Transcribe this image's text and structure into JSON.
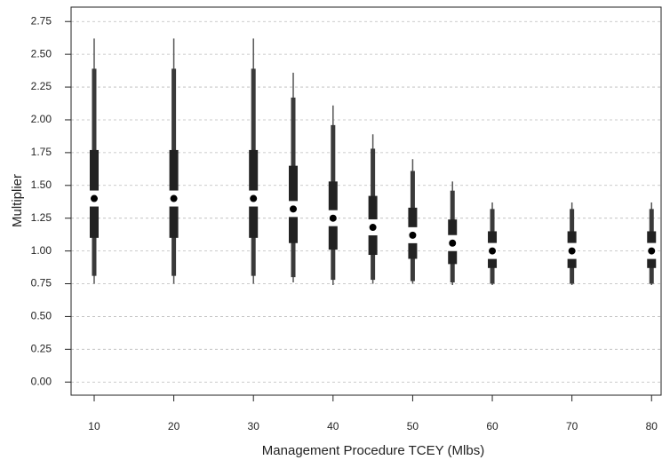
{
  "chart_data": {
    "type": "box",
    "xlabel": "Management Procedure TCEY (Mlbs)",
    "ylabel": "Multiplier",
    "x": [
      10,
      20,
      30,
      35,
      40,
      45,
      50,
      55,
      60,
      70,
      80
    ],
    "min": [
      0.75,
      0.75,
      0.75,
      0.76,
      0.74,
      0.75,
      0.75,
      0.74,
      0.74,
      0.74,
      0.74
    ],
    "p5": [
      0.81,
      0.81,
      0.81,
      0.8,
      0.78,
      0.78,
      0.77,
      0.76,
      0.75,
      0.75,
      0.75
    ],
    "p25": [
      1.1,
      1.1,
      1.1,
      1.06,
      1.01,
      0.97,
      0.94,
      0.9,
      0.87,
      0.87,
      0.87
    ],
    "median": [
      1.4,
      1.4,
      1.4,
      1.32,
      1.25,
      1.18,
      1.12,
      1.06,
      1.0,
      1.0,
      1.0
    ],
    "p75": [
      1.77,
      1.77,
      1.77,
      1.65,
      1.53,
      1.42,
      1.33,
      1.24,
      1.15,
      1.15,
      1.15
    ],
    "p95": [
      2.39,
      2.39,
      2.39,
      2.17,
      1.96,
      1.78,
      1.61,
      1.46,
      1.32,
      1.32,
      1.32
    ],
    "max": [
      2.62,
      2.62,
      2.62,
      2.36,
      2.11,
      1.89,
      1.7,
      1.53,
      1.37,
      1.37,
      1.37
    ],
    "xlim": [
      7.1,
      81.2
    ],
    "ylim": [
      -0.1,
      2.86
    ],
    "xticks": [
      10,
      20,
      30,
      40,
      50,
      60,
      70,
      80
    ],
    "yticks": [
      {
        "value": 0,
        "label": "0.00"
      },
      {
        "value": 0.25,
        "label": "0.25"
      },
      {
        "value": 0.5,
        "label": "0.50"
      },
      {
        "value": 0.75,
        "label": "0.75"
      },
      {
        "value": 1,
        "label": "1.00"
      },
      {
        "value": 1.25,
        "label": "1.25"
      },
      {
        "value": 1.5,
        "label": "1.50"
      },
      {
        "value": 1.75,
        "label": "1.75"
      },
      {
        "value": 2,
        "label": "2.00"
      },
      {
        "value": 2.25,
        "label": "2.25"
      },
      {
        "value": 2.5,
        "label": "2.50"
      },
      {
        "value": 2.75,
        "label": "2.75"
      }
    ],
    "grid": true
  }
}
